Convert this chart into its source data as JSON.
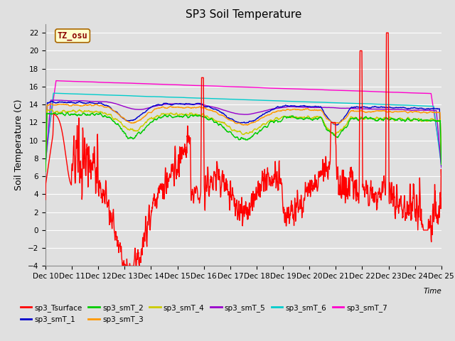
{
  "title": "SP3 Soil Temperature",
  "ylabel": "Soil Temperature (C)",
  "xlabel": "Time",
  "tz_label": "TZ_osu",
  "ylim": [
    -4,
    23
  ],
  "yticks": [
    -4,
    -2,
    0,
    2,
    4,
    6,
    8,
    10,
    12,
    14,
    16,
    18,
    20,
    22
  ],
  "xtick_labels": [
    "Dec 10",
    "Dec 11",
    "Dec 12",
    "Dec 13",
    "Dec 14",
    "Dec 15",
    "Dec 16",
    "Dec 17",
    "Dec 18",
    "Dec 19",
    "Dec 20",
    "Dec 21",
    "Dec 22",
    "Dec 23",
    "Dec 24",
    "Dec 25"
  ],
  "series_colors": {
    "sp3_Tsurface": "#ff0000",
    "sp3_smT_1": "#0000cc",
    "sp3_smT_2": "#00cc00",
    "sp3_smT_3": "#ff9900",
    "sp3_smT_4": "#cccc00",
    "sp3_smT_5": "#9900cc",
    "sp3_smT_6": "#00cccc",
    "sp3_smT_7": "#ff00cc"
  },
  "background_color": "#e0e0e0",
  "plot_bg_color": "#e0e0e0",
  "grid_color": "#ffffff",
  "title_fontsize": 11,
  "axis_label_fontsize": 9,
  "tick_fontsize": 7.5
}
